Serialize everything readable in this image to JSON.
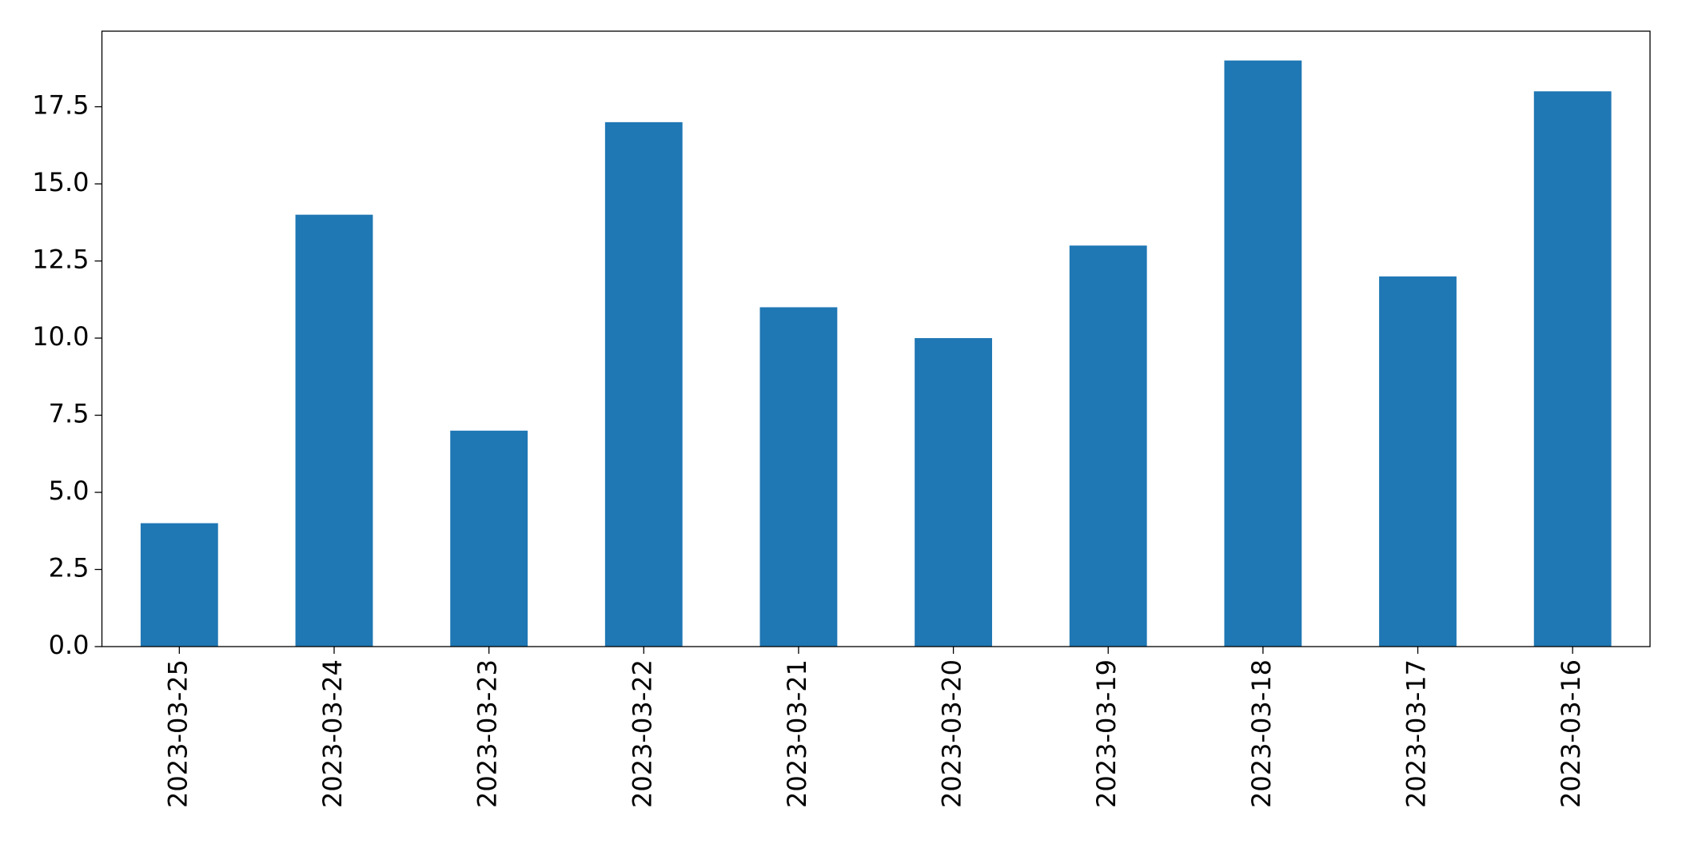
{
  "chart_data": {
    "type": "bar",
    "categories": [
      "2023-03-25",
      "2023-03-24",
      "2023-03-23",
      "2023-03-22",
      "2023-03-21",
      "2023-03-20",
      "2023-03-19",
      "2023-03-18",
      "2023-03-17",
      "2023-03-16"
    ],
    "values": [
      4,
      14,
      7,
      17,
      11,
      10,
      13,
      19,
      12,
      18
    ],
    "color": "#1f77b4",
    "ylim": [
      0,
      19.95
    ],
    "yticks": [
      {
        "value": 0,
        "label": "0.0"
      },
      2.5,
      {
        "value": 5,
        "label": "5.0"
      },
      7.5,
      {
        "value": 10,
        "label": "10.0"
      },
      12.5,
      {
        "value": 15,
        "label": "15.0"
      },
      17.5
    ],
    "grid": false
  }
}
